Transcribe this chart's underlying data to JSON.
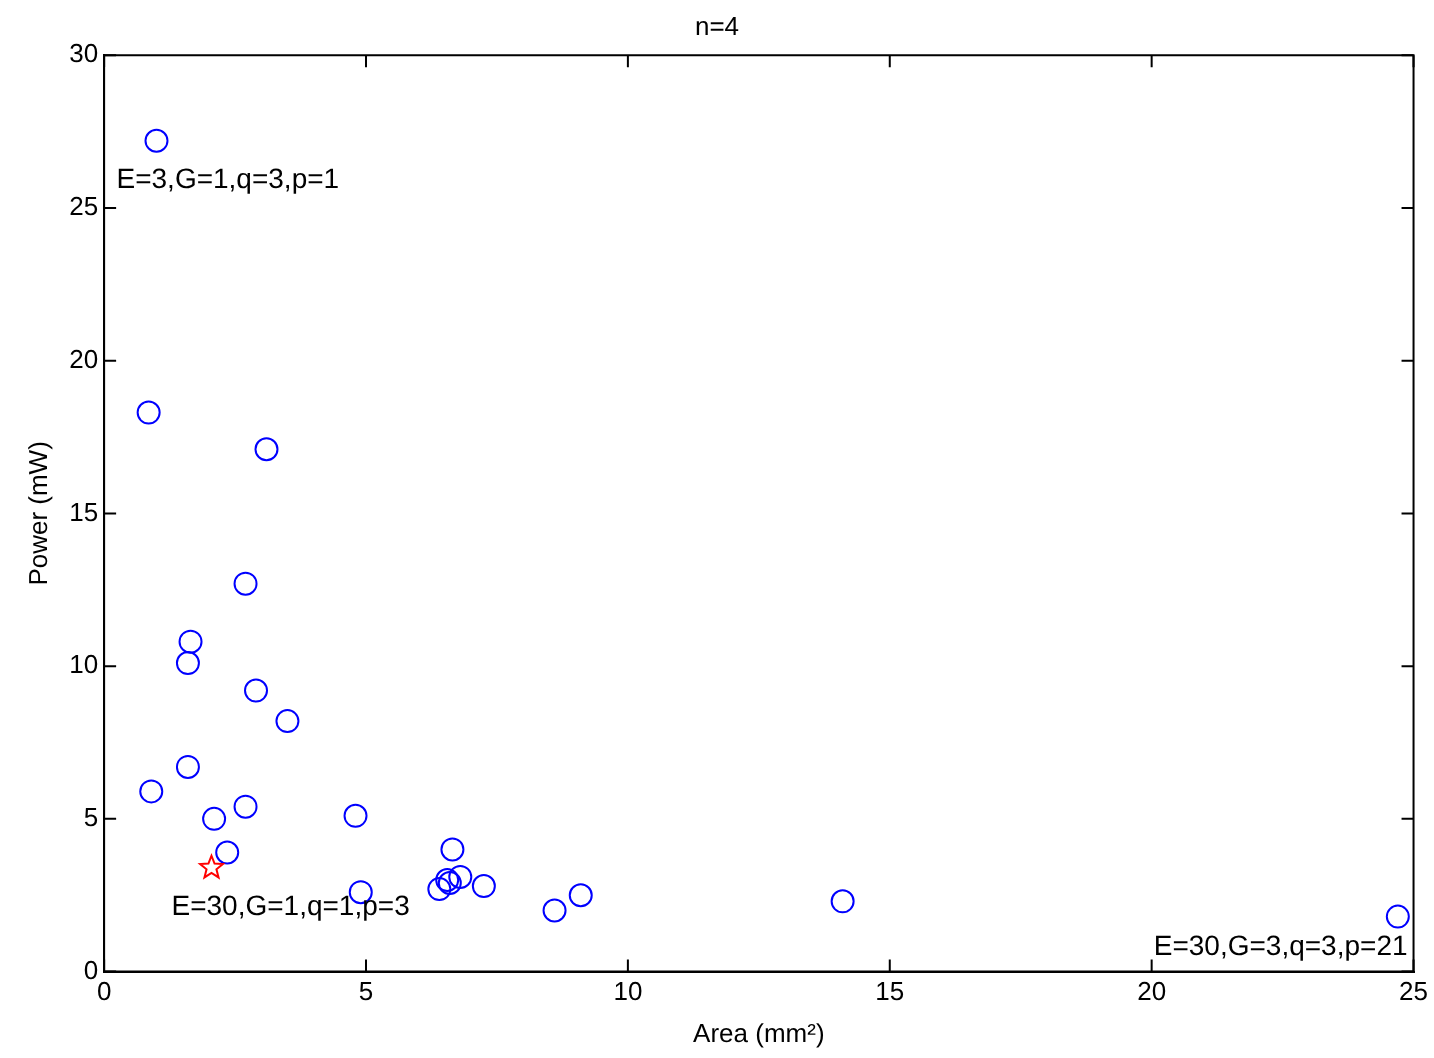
{
  "chart_data": {
    "type": "scatter",
    "title": "n=4",
    "xlabel": "Area (mm²)",
    "ylabel": "Power (mW)",
    "xlim": [
      0,
      25
    ],
    "xticks": [
      0,
      5,
      10,
      15,
      20,
      25
    ],
    "ylim": [
      0,
      30
    ],
    "yticks": [
      0,
      5,
      10,
      15,
      20,
      25,
      30
    ],
    "grid": false,
    "legend": false,
    "series": [
      {
        "color": "#0000ff",
        "marker": "circle",
        "x": [
          1.0,
          0.85,
          3.1,
          2.7,
          1.65,
          1.6,
          2.9,
          3.5,
          1.6,
          0.9,
          2.7,
          2.1,
          4.8,
          2.35,
          4.9,
          6.65,
          6.4,
          6.55,
          6.6,
          6.8,
          7.25,
          8.6,
          9.1,
          14.1,
          24.7
        ],
        "values": [
          27.2,
          18.3,
          17.1,
          12.7,
          10.8,
          10.1,
          9.2,
          8.2,
          6.7,
          5.9,
          5.4,
          5.0,
          5.1,
          3.9,
          2.6,
          4.0,
          2.7,
          3.0,
          2.9,
          3.1,
          2.8,
          2.0,
          2.5,
          2.3,
          1.8
        ]
      },
      {
        "color": "#ff0000",
        "marker": "star",
        "x": [
          2.05
        ],
        "values": [
          3.4
        ]
      }
    ],
    "annotations": [
      {
        "text": "E=3,G=1,q=3,p=1",
        "x": 1.0,
        "y": 27.2
      },
      {
        "text": "E=30,G=1,q=1,p=3",
        "x": 2.05,
        "y": 3.4
      },
      {
        "text": "E=30,G=3,q=3,p=21",
        "x": 24.7,
        "y": 1.8
      }
    ]
  }
}
